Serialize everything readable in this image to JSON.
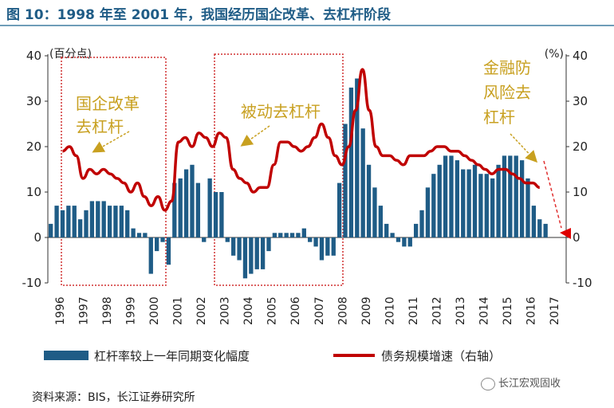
{
  "title": "图 10：1998 年至 2001 年，我国经历国企改革、去杠杆阶段",
  "source": "资料来源：BIS，长江证券研究所",
  "watermark": "长江宏观固收",
  "chart_data": {
    "type": "bar+line",
    "left_unit": "(百分点)",
    "right_unit": "(%)",
    "ylim": [
      -10,
      40
    ],
    "yticks": [
      "40",
      "30",
      "20",
      "10",
      "0",
      "-10"
    ],
    "x_labels": [
      "1996",
      "1997",
      "1998",
      "1999",
      "2000",
      "2001",
      "2002",
      "2003",
      "2004",
      "2005",
      "2006",
      "2007",
      "2008",
      "2009",
      "2010",
      "2011",
      "2012",
      "2013",
      "2014",
      "2015",
      "2016",
      "2017"
    ],
    "x_start": 1996.0,
    "quarters_per_year": 4,
    "legend": {
      "bar": "杠杆率较上一年同期变化幅度",
      "line": "债务规模增速（右轴）"
    },
    "annotations": {
      "soe_line1": "国企改革",
      "soe_line2": "去杠杆",
      "passive": "被动去杠杆",
      "fin_line1": "金融防",
      "fin_line2": "风险去",
      "fin_line3": "杠杆"
    },
    "colors": {
      "bar": "#1F5C86",
      "line": "#C00000",
      "annotation": "#C8A020",
      "box": "#D03030",
      "title": "#1F5C86"
    },
    "series": [
      {
        "name": "杠杆率较上一年同期变化幅度",
        "type": "bar",
        "values": [
          3,
          7,
          6,
          7,
          7,
          4,
          6,
          8,
          8,
          8,
          7,
          7,
          7,
          6,
          2,
          1,
          1,
          -8,
          -3,
          -1,
          -6,
          12,
          13,
          15,
          16,
          12,
          -1,
          13,
          10,
          10,
          -1,
          -4,
          -5,
          -9,
          -8,
          -7,
          -7,
          -3,
          1,
          1,
          1,
          1,
          1,
          2,
          -1,
          -2,
          -5,
          -4,
          -4,
          12,
          25,
          33,
          35,
          24,
          16,
          11,
          7,
          3,
          1,
          -1,
          -2,
          -2,
          3,
          6,
          11,
          14,
          16,
          18,
          18,
          17,
          15,
          15,
          16,
          14,
          14,
          13,
          16,
          18,
          18,
          18,
          17,
          13,
          7,
          4,
          3
        ]
      },
      {
        "name": "债务规模增速（右轴）",
        "type": "line",
        "values": [
          19,
          20,
          18,
          13,
          15,
          14,
          15,
          14,
          13,
          12,
          10,
          12,
          9,
          7,
          9,
          6,
          8,
          21,
          22,
          20,
          23,
          22,
          20,
          23,
          22,
          15,
          13,
          12,
          10,
          11,
          11,
          16,
          21,
          21,
          20,
          19,
          20,
          22,
          25,
          22,
          18,
          16,
          20,
          28,
          37,
          28,
          20,
          18,
          18,
          17,
          16,
          18,
          18,
          18,
          19,
          20,
          20,
          19,
          19,
          18,
          17,
          16,
          15,
          14,
          15,
          15,
          14,
          13,
          12,
          12,
          11
        ]
      }
    ]
  }
}
